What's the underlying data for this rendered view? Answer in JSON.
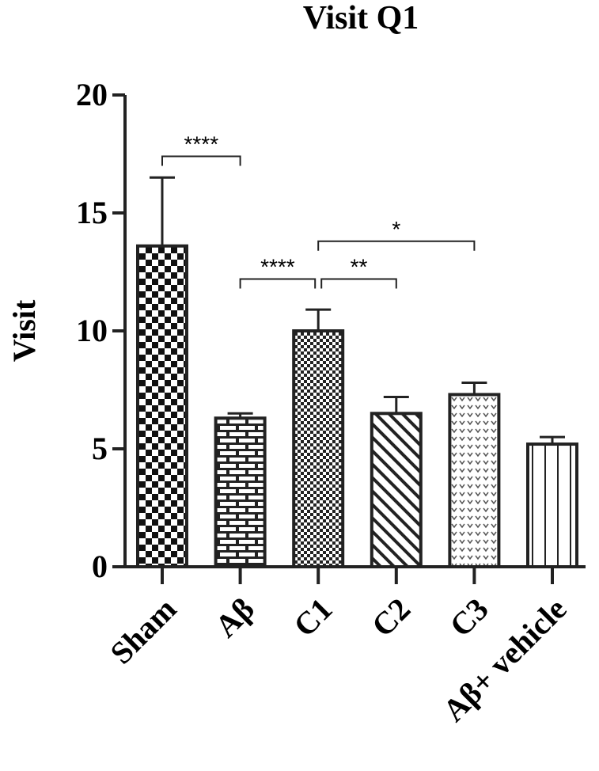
{
  "chart_data": {
    "type": "bar",
    "title": "Visit Q1",
    "xlabel": "",
    "ylabel": "Visit",
    "ylim": [
      0,
      20
    ],
    "yticks": [
      "0",
      "5",
      "10",
      "15",
      "20"
    ],
    "categories": [
      "Sham",
      "Aβ",
      "C1",
      "C2",
      "C3",
      "Aβ+ vehicle"
    ],
    "values": [
      13.6,
      6.3,
      10.0,
      6.5,
      7.3,
      5.2
    ],
    "errors": [
      2.9,
      0.2,
      0.9,
      0.7,
      0.5,
      0.3
    ],
    "patterns": [
      "checkerboard",
      "brick",
      "fine-check",
      "diagonal-hatch",
      "dotted",
      "vertical-lines"
    ],
    "grid": false,
    "significance": [
      {
        "from": "Sham",
        "to": "Aβ",
        "label": "****"
      },
      {
        "from": "Aβ",
        "to": "C1",
        "label": "****"
      },
      {
        "from": "C1",
        "to": "C2",
        "label": "**"
      },
      {
        "from": "C1",
        "to": "C3",
        "label": "*"
      }
    ]
  }
}
